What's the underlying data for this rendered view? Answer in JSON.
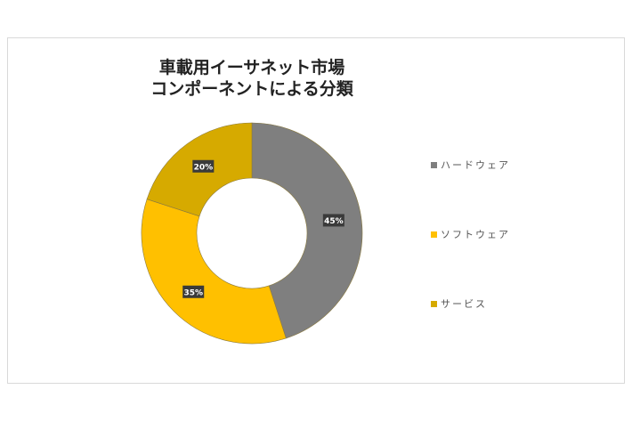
{
  "chart_data": {
    "type": "pie",
    "variant": "donut",
    "title_lines": [
      "車載用イーサネット市場",
      "コンポーネントによる分類"
    ],
    "categories": [
      "ハードウェア",
      "ソフトウェア",
      "サービス"
    ],
    "values": [
      45,
      35,
      20
    ],
    "data_labels": [
      "45%",
      "35%",
      "20%"
    ],
    "colors": [
      "#7f7f7f",
      "#ffc000",
      "#d6aa00"
    ],
    "legend_position": "right"
  }
}
